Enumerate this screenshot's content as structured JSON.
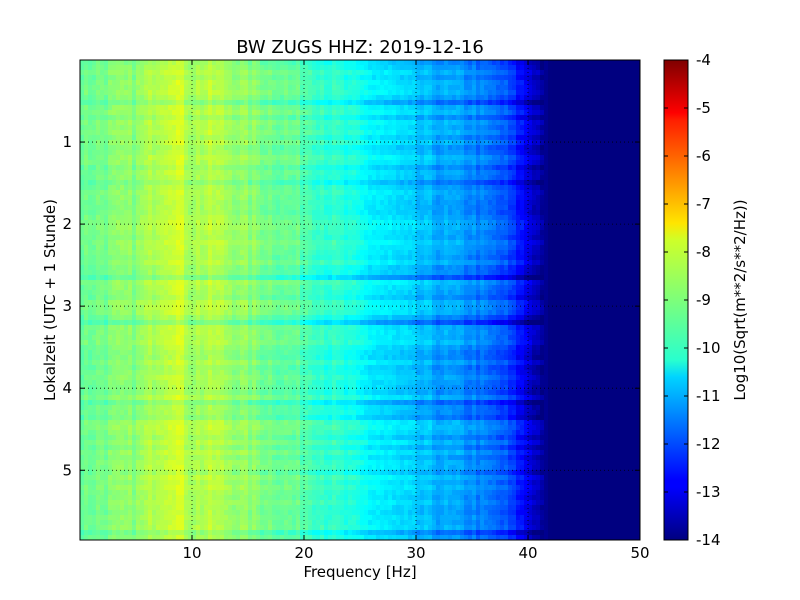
{
  "chart_data": {
    "type": "heatmap",
    "title": "BW ZUGS HHZ: 2019-12-16",
    "xlabel": "Frequency [Hz]",
    "ylabel": "Lokalzeit (UTC + 1 Stunde)",
    "xlim": [
      0,
      50
    ],
    "ylim": [
      5.85,
      0.0
    ],
    "y_inverted": true,
    "x_ticks": [
      "10",
      "20",
      "30",
      "40",
      "50"
    ],
    "x_tick_values": [
      10,
      20,
      30,
      40,
      50
    ],
    "y_ticks": [
      "1",
      "2",
      "3",
      "4",
      "5"
    ],
    "y_tick_values": [
      1,
      2,
      3,
      4,
      5
    ],
    "grid": true,
    "colormap": "jet",
    "colorbar": {
      "label": "Log10(Sqrt(m**2/s**2/Hz))",
      "min": -14,
      "max": -4,
      "ticks": [
        "-4",
        "-5",
        "-6",
        "-7",
        "-8",
        "-9",
        "-10",
        "-11",
        "-12",
        "-13",
        "-14"
      ],
      "tick_values": [
        -4,
        -5,
        -6,
        -7,
        -8,
        -9,
        -10,
        -11,
        -12,
        -13,
        -14
      ]
    },
    "spectral_profile": {
      "description_freq_hz": [
        0,
        3,
        5,
        7,
        8.5,
        10,
        12,
        15,
        20,
        25,
        30,
        35,
        38,
        40,
        41.5,
        42,
        50
      ],
      "log10_amplitude": [
        -9.2,
        -9.0,
        -8.9,
        -8.4,
        -8.1,
        -8.6,
        -8.5,
        -8.9,
        -9.4,
        -10.2,
        -10.9,
        -11.4,
        -12.0,
        -13.0,
        -13.8,
        -14.0,
        -14.0
      ]
    },
    "time_range_hours": [
      0.0,
      5.85
    ]
  }
}
